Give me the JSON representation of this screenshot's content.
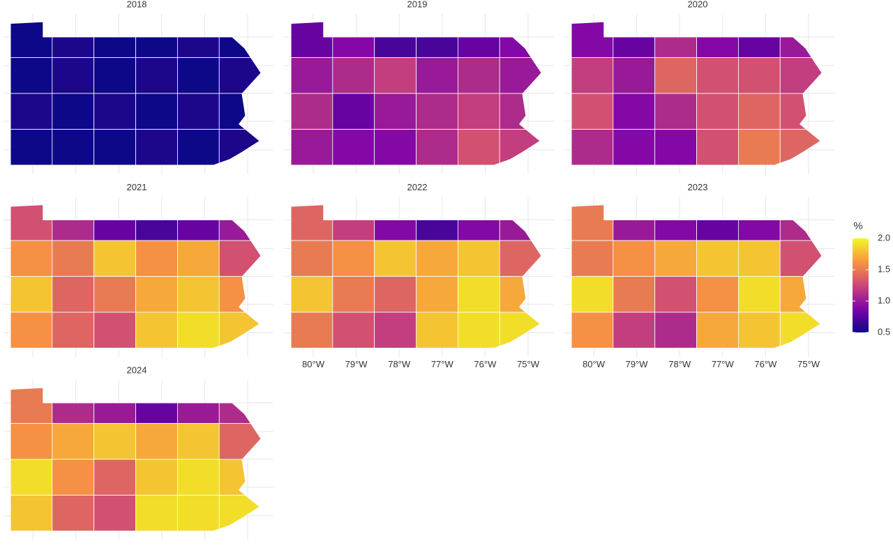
{
  "chart_data": {
    "type": "choropleth",
    "panels": [
      {
        "title": "2018",
        "values": [
          [
            0.5,
            0.55,
            0.5,
            0.5,
            0.55,
            0.5
          ],
          [
            0.5,
            0.55,
            0.5,
            0.55,
            0.5,
            0.55
          ],
          [
            0.55,
            0.5,
            0.55,
            0.5,
            0.55,
            0.5
          ],
          [
            0.5,
            0.5,
            0.5,
            0.55,
            0.5,
            0.55
          ]
        ]
      },
      {
        "title": "2019",
        "values": [
          [
            0.8,
            0.9,
            0.7,
            0.7,
            0.8,
            0.9
          ],
          [
            1.0,
            1.1,
            1.2,
            1.0,
            1.1,
            1.0
          ],
          [
            1.1,
            0.8,
            1.0,
            1.1,
            1.2,
            1.1
          ],
          [
            1.0,
            0.9,
            0.9,
            1.1,
            1.3,
            1.2
          ]
        ]
      },
      {
        "title": "2020",
        "values": [
          [
            0.9,
            0.8,
            1.1,
            0.9,
            0.8,
            1.0
          ],
          [
            1.2,
            1.0,
            1.4,
            1.3,
            1.3,
            1.2
          ],
          [
            1.3,
            0.9,
            1.1,
            1.3,
            1.4,
            1.3
          ],
          [
            1.1,
            0.9,
            0.9,
            1.3,
            1.5,
            1.4
          ]
        ]
      },
      {
        "title": "2021",
        "values": [
          [
            1.3,
            1.1,
            0.8,
            0.7,
            0.8,
            1.0
          ],
          [
            1.6,
            1.5,
            1.8,
            1.6,
            1.7,
            1.3
          ],
          [
            1.8,
            1.4,
            1.5,
            1.7,
            1.8,
            1.6
          ],
          [
            1.6,
            1.4,
            1.3,
            1.8,
            1.9,
            1.8
          ]
        ]
      },
      {
        "title": "2022",
        "values": [
          [
            1.4,
            1.2,
            0.9,
            0.7,
            0.9,
            1.0
          ],
          [
            1.5,
            1.6,
            1.8,
            1.7,
            1.8,
            1.4
          ],
          [
            1.8,
            1.5,
            1.4,
            1.7,
            1.9,
            1.7
          ],
          [
            1.5,
            1.3,
            1.2,
            1.8,
            1.9,
            1.9
          ]
        ]
      },
      {
        "title": "2023",
        "values": [
          [
            1.5,
            1.0,
            0.9,
            0.8,
            0.9,
            1.1
          ],
          [
            1.5,
            1.6,
            1.7,
            1.8,
            1.8,
            1.3
          ],
          [
            1.9,
            1.5,
            1.3,
            1.6,
            1.9,
            1.7
          ],
          [
            1.6,
            1.2,
            1.1,
            1.7,
            1.8,
            1.9
          ]
        ]
      },
      {
        "title": "2024",
        "values": [
          [
            1.5,
            1.1,
            1.0,
            0.8,
            1.0,
            1.1
          ],
          [
            1.6,
            1.7,
            1.8,
            1.7,
            1.8,
            1.4
          ],
          [
            1.9,
            1.6,
            1.4,
            1.8,
            1.9,
            1.8
          ],
          [
            1.8,
            1.4,
            1.3,
            1.9,
            1.9,
            1.9
          ]
        ]
      }
    ],
    "xticks": [
      {
        "value": -80,
        "label": "80°W"
      },
      {
        "value": -79,
        "label": "79°W"
      },
      {
        "value": -78,
        "label": "78°W"
      },
      {
        "value": -77,
        "label": "77°W"
      },
      {
        "value": -76,
        "label": "76°W"
      },
      {
        "value": -75,
        "label": "75°W"
      }
    ],
    "legend": {
      "title": "%",
      "lim": [
        0.5,
        2.0
      ],
      "ticks": [
        {
          "value": 2.0,
          "label": "2.0"
        },
        {
          "value": 1.5,
          "label": "1.5"
        },
        {
          "value": 1.0,
          "label": "1.0"
        },
        {
          "value": 0.5,
          "label": "0.5"
        }
      ]
    },
    "colorscale": [
      "#0d0887",
      "#7e03a8",
      "#cc4778",
      "#f89540",
      "#f0f921"
    ],
    "grid": true
  }
}
